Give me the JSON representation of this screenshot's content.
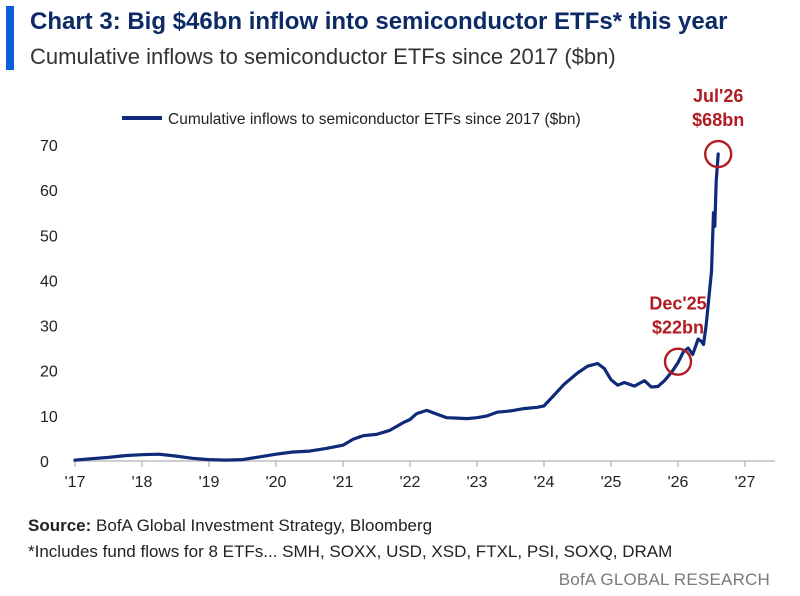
{
  "header": {
    "title": "Chart 3: Big $46bn inflow into semiconductor ETFs* this year",
    "subtitle": "Cumulative inflows to semiconductor ETFs since 2017 ($bn)"
  },
  "footer": {
    "source_label": "Source:",
    "source_text": " BofA Global Investment Strategy, Bloomberg",
    "note": "*Includes fund flows for 8 ETFs... SMH, SOXX, USD, XSD, FTXL, PSI, SOXQ, DRAM",
    "brand": "BofA GLOBAL RESEARCH"
  },
  "colors": {
    "line": "#0f2a78",
    "annotation": "#b01c22",
    "accent": "#0b5fd7"
  },
  "chart_data": {
    "type": "line",
    "title": "",
    "xlabel": "",
    "ylabel": "",
    "legend": {
      "label": "Cumulative inflows to semiconductor ETFs since 2017 ($bn)",
      "placement": "top"
    },
    "grid": false,
    "ylim": [
      0,
      70
    ],
    "yticks": [
      0,
      10,
      20,
      30,
      40,
      50,
      60,
      70
    ],
    "xlim": [
      2017,
      2027
    ],
    "xticks": [
      2017,
      2018,
      2019,
      2020,
      2021,
      2022,
      2023,
      2024,
      2025,
      2026,
      2027
    ],
    "xtick_labels": [
      "'17",
      "'18",
      "'19",
      "'20",
      "'21",
      "'22",
      "'23",
      "'24",
      "'25",
      "'26",
      "'27"
    ],
    "series": [
      {
        "name": "Cumulative inflows to semiconductor ETFs since 2017 ($bn)",
        "x": [
          2017.0,
          2017.25,
          2017.5,
          2017.75,
          2018.0,
          2018.25,
          2018.5,
          2018.75,
          2019.0,
          2019.25,
          2019.5,
          2019.75,
          2020.0,
          2020.25,
          2020.5,
          2020.75,
          2021.0,
          2021.15,
          2021.3,
          2021.5,
          2021.7,
          2021.9,
          2022.0,
          2022.1,
          2022.25,
          2022.4,
          2022.55,
          2022.7,
          2022.85,
          2023.0,
          2023.15,
          2023.3,
          2023.5,
          2023.7,
          2023.9,
          2024.0,
          2024.15,
          2024.3,
          2024.5,
          2024.65,
          2024.8,
          2024.9,
          2025.0,
          2025.1,
          2025.2,
          2025.35,
          2025.5,
          2025.6,
          2025.7,
          2025.8,
          2025.92,
          2026.0,
          2026.08,
          2026.15,
          2026.22,
          2026.3,
          2026.35,
          2026.38,
          2026.42,
          2026.46,
          2026.5,
          2026.53,
          2026.55,
          2026.57,
          2026.6
        ],
        "values": [
          0.2,
          0.5,
          0.8,
          1.2,
          1.4,
          1.5,
          1.1,
          0.6,
          0.3,
          0.2,
          0.3,
          0.9,
          1.5,
          2.0,
          2.2,
          2.8,
          3.5,
          4.8,
          5.6,
          5.9,
          6.8,
          8.5,
          9.2,
          10.5,
          11.2,
          10.4,
          9.6,
          9.5,
          9.4,
          9.6,
          10.0,
          10.8,
          11.1,
          11.6,
          11.9,
          12.2,
          14.6,
          17.0,
          19.5,
          21.0,
          21.6,
          20.5,
          18.0,
          16.8,
          17.4,
          16.6,
          17.8,
          16.4,
          16.5,
          17.8,
          20.0,
          21.8,
          24.2,
          25.0,
          23.6,
          27.0,
          26.5,
          25.8,
          30.0,
          36.0,
          42.0,
          55.0,
          52.0,
          62.0,
          68.0
        ]
      }
    ],
    "annotations": [
      {
        "label_line1": "Dec'25",
        "label_line2": "$22bn",
        "x": 2026.0,
        "y": 22
      },
      {
        "label_line1": "Jul'26",
        "label_line2": "$68bn",
        "x": 2026.6,
        "y": 68
      }
    ]
  }
}
